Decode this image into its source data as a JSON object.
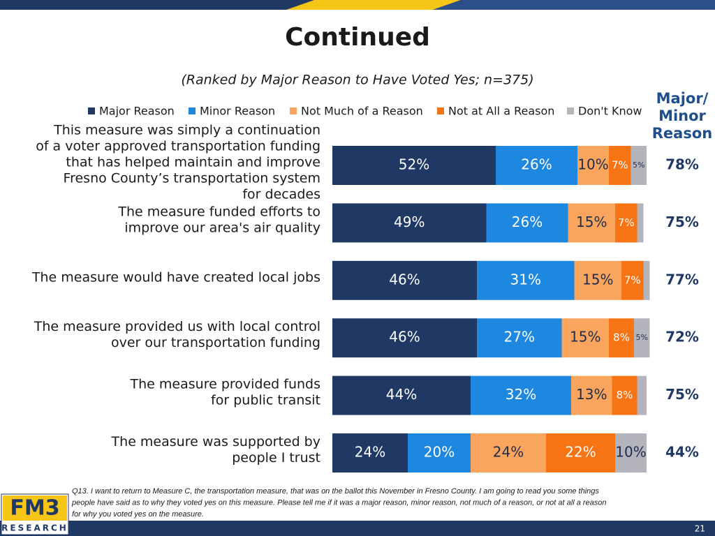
{
  "chart_data": {
    "type": "stacked_bar_horizontal",
    "title": "Continued",
    "subtitle": "(Ranked by Major Reason to Have Voted Yes; n=375)",
    "categories": [
      [
        "This measure was simply a continuation",
        "of a voter approved transportation funding",
        "that has helped maintain and improve",
        "Fresno County’s transportation system",
        "for decades"
      ],
      [
        "The measure funded efforts to",
        "improve our area's air quality"
      ],
      [
        "The measure would have created local jobs"
      ],
      [
        "The measure provided us with local control",
        "over our transportation funding"
      ],
      [
        "The measure provided funds",
        "for public transit"
      ],
      [
        "The measure was supported by",
        "people I trust"
      ]
    ],
    "series": [
      {
        "name": "Major Reason",
        "color": "#1f3864",
        "label_color": "#ffffff",
        "values": [
          52,
          49,
          46,
          46,
          44,
          24
        ],
        "value_labels": [
          "52%",
          "49%",
          "46%",
          "46%",
          "44%",
          "24%"
        ]
      },
      {
        "name": "Minor Reason",
        "color": "#1e88e0",
        "label_color": "#ffffff",
        "values": [
          26,
          26,
          31,
          27,
          32,
          20
        ],
        "value_labels": [
          "26%",
          "26%",
          "31%",
          "27%",
          "32%",
          "20%"
        ]
      },
      {
        "name": "Not Much of a Reason",
        "color": "#f9a55e",
        "label_color": "#1f2d4a",
        "values": [
          10,
          15,
          15,
          15,
          13,
          24
        ],
        "value_labels": [
          "10%",
          "15%",
          "15%",
          "15%",
          "13%",
          "24%"
        ]
      },
      {
        "name": "Not at All a Reason",
        "color": "#f77414",
        "label_color": "#ffffff",
        "values": [
          7,
          7,
          7,
          8,
          8,
          22
        ],
        "value_labels": [
          "7%",
          "7%",
          "7%",
          "8%",
          "8%",
          "22%"
        ]
      },
      {
        "name": "Don't Know",
        "color": "#b4b4bc",
        "label_color": "#1f2d4a",
        "values": [
          5,
          2,
          2,
          5,
          3,
          10
        ],
        "value_labels": [
          "5%",
          null,
          null,
          "5%",
          null,
          "10%"
        ]
      }
    ],
    "xlim": [
      0,
      100
    ],
    "net_header": [
      "Major/",
      "Minor",
      "Reason"
    ],
    "net_values": [
      78,
      75,
      77,
      72,
      75,
      44
    ],
    "net_labels": [
      "78%",
      "75%",
      "77%",
      "72%",
      "75%",
      "44%"
    ],
    "footnote": [
      "Q13. I want to return to Measure C, the transportation measure, that was on the ballot this November in Fresno County. I am going to read you some things",
      "people have said as to why they voted yes on this measure. Please tell me if it was a major reason, minor reason, not much of a reason, or not at all a reason",
      "for why you voted yes on the measure."
    ],
    "logo": {
      "top": "FM3",
      "bottom": "RESEARCH"
    },
    "page_number": "21"
  }
}
